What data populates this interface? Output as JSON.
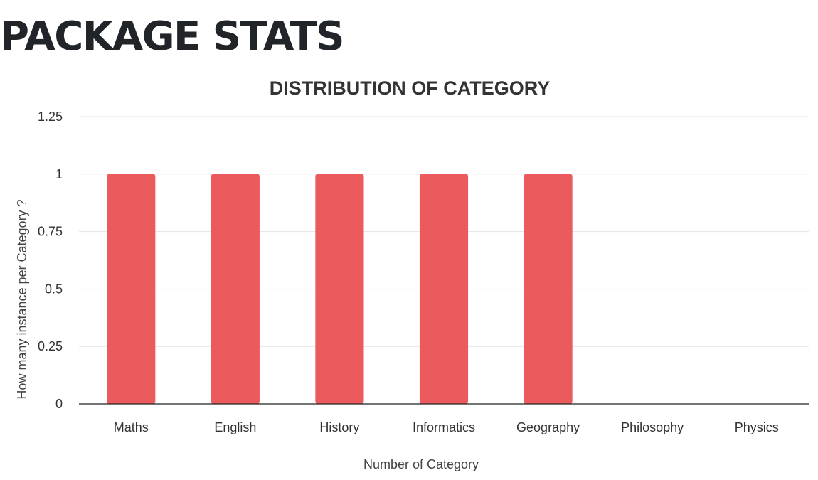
{
  "page": {
    "title": "PACKAGE STATS"
  },
  "chart_data": {
    "type": "bar",
    "title": "DISTRIBUTION OF CATEGORY",
    "xlabel": "Number of Category",
    "ylabel": "How many instance per Category ?",
    "categories": [
      "Maths",
      "English",
      "History",
      "Informatics",
      "Geography",
      "Philosophy",
      "Physics"
    ],
    "values": [
      1,
      1,
      1,
      1,
      1,
      0,
      0
    ],
    "ylim": [
      0,
      1.25
    ],
    "yticks": [
      0,
      0.25,
      0.5,
      0.75,
      1,
      1.25
    ],
    "ytick_labels": [
      "0",
      "0.25",
      "0.5",
      "0.75",
      "1",
      "1.25"
    ],
    "bar_color": "#eb5b5d",
    "grid": true,
    "legend": "none"
  }
}
